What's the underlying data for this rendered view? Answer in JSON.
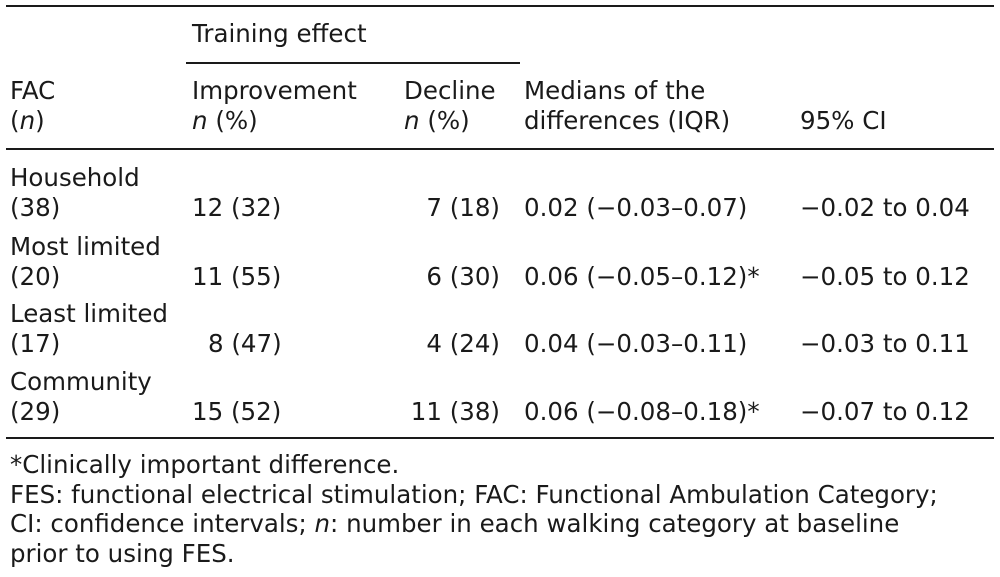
{
  "header": {
    "spanner": "Training effect",
    "col_fac": {
      "label": "FAC",
      "sub_pre": "(",
      "sub_n": "n",
      "sub_post": ")"
    },
    "col_improvement": {
      "label": "Improvement",
      "sub_n": "n",
      "sub_pct": " (%)"
    },
    "col_decline": {
      "label": "Decline",
      "sub_n": "n",
      "sub_pct": " (%)"
    },
    "col_medians": {
      "line1": "Medians of the",
      "line2": "differences (IQR)"
    },
    "col_ci": {
      "label": "95% CI"
    }
  },
  "rows": [
    {
      "category": "Household",
      "n": "(38)",
      "improvement": "12 (32)",
      "decline": "7 (18)",
      "median": "0.02 (−0.03–0.07)",
      "ci": "−0.02 to 0.04"
    },
    {
      "category": "Most limited",
      "n": "(20)",
      "improvement": "11 (55)",
      "decline": "6 (30)",
      "median": "0.06 (−0.05–0.12)*",
      "ci": "−0.05 to 0.12"
    },
    {
      "category": "Least limited",
      "n": "(17)",
      "improvement": "8 (47)",
      "decline": "4 (24)",
      "median": "0.04 (−0.03–0.11)",
      "ci": "−0.03 to 0.11"
    },
    {
      "category": "Community",
      "n": "(29)",
      "improvement": "15 (52)",
      "decline": "11 (38)",
      "median": "0.06 (−0.08–0.18)*",
      "ci": "−0.07 to 0.12"
    }
  ],
  "footnotes": {
    "line1": "*Clinically important difference.",
    "line2": "FES: functional electrical stimulation; FAC: Functional Ambulation Category;",
    "line3_a": "CI: confidence intervals; ",
    "line3_n": "n",
    "line3_b": ": number in each walking category at baseline",
    "line4": "prior to using FES."
  }
}
